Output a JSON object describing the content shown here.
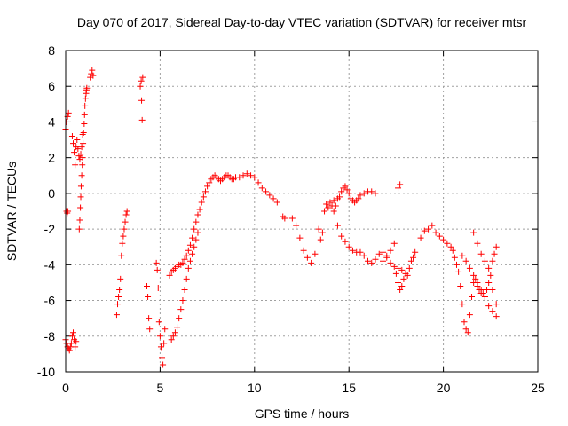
{
  "chart_data": {
    "type": "scatter",
    "title": "Day 070 of 2017, Sidereal Day-to-day VTEC variation (SDTVAR) for receiver mtsr",
    "xlabel": "GPS time / hours",
    "ylabel": "SDTVAR / TECUs",
    "xlim": [
      0,
      25
    ],
    "ylim": [
      -10,
      8
    ],
    "xticks": [
      0,
      5,
      10,
      15,
      20,
      25
    ],
    "yticks": [
      -10,
      -8,
      -6,
      -4,
      -2,
      0,
      2,
      4,
      6,
      8
    ],
    "xtick_labels": [
      "0",
      "5",
      "10",
      "15",
      "20",
      "25"
    ],
    "ytick_labels": [
      "-10",
      "-8",
      "-6",
      "-4",
      "-2",
      "0",
      "2",
      "4",
      "6",
      "8"
    ],
    "grid": true,
    "marker": "plus",
    "marker_color": "#ff0000",
    "series": [
      {
        "name": "SDTVAR",
        "x": [
          0.0,
          0.05,
          0.1,
          0.15,
          0.2,
          0.25,
          0.3,
          0.35,
          0.4,
          0.45,
          0.5,
          0.55,
          0.0,
          0.05,
          0.1,
          0.15,
          0.05,
          0.08,
          0.12,
          0.35,
          0.4,
          0.45,
          0.5,
          0.55,
          0.6,
          0.65,
          0.7,
          0.75,
          0.8,
          0.85,
          0.9,
          0.72,
          0.75,
          0.78,
          0.8,
          0.82,
          0.85,
          0.88,
          0.9,
          0.92,
          0.95,
          0.98,
          1.0,
          1.02,
          1.05,
          1.08,
          1.1,
          1.12,
          1.3,
          1.35,
          1.4,
          1.45,
          2.7,
          2.75,
          2.8,
          2.85,
          2.9,
          2.95,
          3.0,
          3.05,
          3.1,
          3.15,
          3.2,
          3.25,
          3.95,
          4.0,
          4.02,
          4.05,
          4.08,
          4.3,
          4.35,
          4.4,
          4.45,
          4.8,
          4.85,
          4.9,
          4.95,
          5.0,
          5.05,
          5.1,
          5.15,
          5.2,
          5.25,
          5.5,
          5.6,
          5.7,
          5.8,
          5.9,
          6.0,
          6.1,
          6.2,
          6.3,
          6.4,
          6.5,
          6.6,
          6.7,
          6.8,
          6.9,
          7.0,
          7.1,
          7.2,
          7.3,
          7.4,
          7.5,
          7.6,
          7.7,
          7.8,
          7.9,
          8.0,
          8.1,
          8.2,
          8.3,
          8.4,
          8.5,
          8.6,
          8.7,
          8.8,
          8.9,
          9.0,
          9.2,
          9.4,
          9.6,
          9.8,
          10.0,
          10.2,
          10.4,
          10.6,
          10.8,
          11.0,
          11.2,
          5.6,
          5.7,
          5.8,
          5.9,
          6.0,
          6.1,
          6.2,
          6.3,
          6.4,
          6.5,
          6.6,
          6.7,
          6.8,
          6.9,
          7.0,
          11.5,
          11.6,
          12.0,
          12.2,
          12.4,
          12.6,
          12.8,
          13.0,
          13.2,
          13.4,
          13.5,
          13.6,
          13.7,
          13.8,
          13.9,
          14.0,
          14.1,
          14.2,
          14.3,
          14.4,
          14.5,
          14.6,
          14.7,
          14.8,
          14.9,
          15.0,
          15.1,
          15.2,
          15.3,
          15.4,
          15.5,
          15.6,
          15.8,
          16.0,
          16.2,
          16.4,
          14.2,
          14.4,
          14.6,
          14.8,
          15.0,
          15.2,
          15.4,
          15.6,
          15.8,
          16.0,
          16.2,
          16.4,
          16.6,
          16.8,
          17.0,
          17.2,
          17.4,
          17.6,
          17.8,
          16.8,
          17.0,
          17.2,
          17.4,
          17.5,
          17.6,
          17.7,
          17.8,
          17.9,
          18.0,
          18.1,
          18.2,
          18.3,
          18.4,
          18.5,
          17.6,
          17.7,
          18.8,
          19.0,
          19.2,
          19.4,
          19.6,
          19.8,
          20.0,
          20.2,
          20.4,
          20.5,
          20.6,
          20.7,
          20.8,
          20.9,
          21.0,
          21.1,
          21.2,
          21.3,
          21.4,
          21.5,
          21.6,
          21.7,
          21.8,
          21.9,
          22.0,
          22.1,
          22.2,
          22.3,
          22.4,
          22.5,
          22.6,
          22.7,
          22.8,
          21.0,
          21.2,
          21.4,
          21.6,
          21.8,
          22.0,
          22.2,
          22.4,
          22.6,
          22.8,
          21.6,
          21.8,
          22.0,
          22.2,
          22.4,
          22.6,
          22.8
        ],
        "y": [
          -8.2,
          -8.4,
          -8.6,
          -8.7,
          -8.8,
          -8.6,
          -8.4,
          -8.0,
          -7.8,
          -8.2,
          -8.6,
          -8.3,
          3.6,
          4.0,
          4.3,
          4.5,
          -1.0,
          -1.1,
          -1.0,
          3.2,
          2.8,
          2.3,
          1.6,
          2.6,
          3.0,
          2.5,
          2.1,
          1.9,
          2.2,
          2.6,
          3.3,
          -2.0,
          -1.5,
          -0.8,
          -0.2,
          0.4,
          1.0,
          1.6,
          2.0,
          2.8,
          3.4,
          3.9,
          4.4,
          4.9,
          5.3,
          5.6,
          5.8,
          5.9,
          6.5,
          6.7,
          6.9,
          6.6,
          -6.8,
          -6.2,
          -5.8,
          -5.4,
          -4.8,
          -3.5,
          -2.8,
          -2.4,
          -2.0,
          -1.6,
          -1.2,
          -1.0,
          6.0,
          6.3,
          5.2,
          4.1,
          6.5,
          -5.2,
          -5.8,
          -7.0,
          -7.6,
          -3.9,
          -4.3,
          -5.3,
          -7.2,
          -8.0,
          -8.6,
          -9.2,
          -9.6,
          -8.4,
          -7.6,
          -4.6,
          -4.4,
          -4.3,
          -4.2,
          -4.1,
          -4.0,
          -4.0,
          -3.9,
          -3.7,
          -3.5,
          -3.2,
          -2.9,
          -2.5,
          -2.0,
          -1.6,
          -1.2,
          -0.9,
          -0.5,
          -0.2,
          0.1,
          0.4,
          0.6,
          0.8,
          0.9,
          1.0,
          0.9,
          0.8,
          0.7,
          0.8,
          0.9,
          1.0,
          1.0,
          0.9,
          0.8,
          0.8,
          0.9,
          0.9,
          1.0,
          1.1,
          1.0,
          0.9,
          0.6,
          0.3,
          0.1,
          -0.1,
          -0.3,
          -0.5,
          -8.2,
          -8.0,
          -7.8,
          -7.5,
          -7.0,
          -6.5,
          -6.0,
          -5.4,
          -4.8,
          -4.2,
          -3.8,
          -3.4,
          -3.0,
          -2.6,
          -2.2,
          -1.3,
          -1.4,
          -1.4,
          -1.8,
          -2.5,
          -3.2,
          -3.6,
          -3.9,
          -3.4,
          -2.0,
          -2.6,
          -2.2,
          -1.0,
          -0.6,
          -0.8,
          -0.5,
          -0.7,
          -0.4,
          -0.7,
          -0.3,
          -0.2,
          0.1,
          0.3,
          0.4,
          0.2,
          0.0,
          -0.3,
          -0.4,
          -0.5,
          -0.4,
          -0.3,
          -0.1,
          0.0,
          0.1,
          0.1,
          0.0,
          -1.0,
          -1.8,
          -2.4,
          -2.7,
          -3.0,
          -3.2,
          -3.3,
          -3.3,
          -3.5,
          -3.8,
          -3.9,
          -3.7,
          -3.4,
          -3.3,
          -3.6,
          -3.9,
          -4.1,
          -4.2,
          -4.3,
          -3.8,
          -3.5,
          -3.2,
          -2.8,
          -4.5,
          -5.0,
          -5.4,
          -5.2,
          -4.8,
          -4.5,
          -4.6,
          -4.2,
          -3.8,
          -3.6,
          -3.3,
          0.3,
          0.5,
          -2.5,
          -2.1,
          -2.0,
          -1.8,
          -2.2,
          -2.4,
          -2.6,
          -2.8,
          -3.0,
          -3.2,
          -3.6,
          -4.0,
          -4.4,
          -5.2,
          -6.2,
          -7.2,
          -7.6,
          -7.8,
          -6.8,
          -5.8,
          -5.0,
          -4.8,
          -5.2,
          -5.4,
          -5.6,
          -5.6,
          -5.8,
          -5.4,
          -5.0,
          -4.6,
          -3.8,
          -3.4,
          -3.0,
          -3.5,
          -3.8,
          -4.2,
          -4.6,
          -5.0,
          -5.4,
          -5.8,
          -6.3,
          -6.6,
          -6.9,
          -2.2,
          -2.8,
          -3.4,
          -3.8,
          -4.2,
          -5.4,
          -6.2
        ]
      }
    ]
  }
}
